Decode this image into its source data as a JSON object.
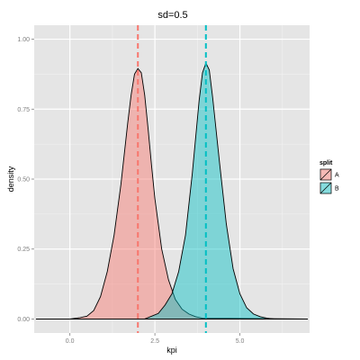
{
  "chart_data": {
    "type": "area",
    "title": "sd=0.5",
    "xlabel": "kpi",
    "ylabel": "density",
    "xlim": [
      -1.05,
      7.05
    ],
    "ylim": [
      -0.05,
      1.05
    ],
    "x_ticks": [
      0.0,
      2.5,
      5.0
    ],
    "x_tick_labels": [
      "0.0",
      "2.5",
      "5.0"
    ],
    "y_ticks": [
      0.0,
      0.25,
      0.5,
      0.75,
      1.0
    ],
    "y_tick_labels": [
      "0.00",
      "0.25",
      "0.50",
      "0.75",
      "1.00"
    ],
    "grid": true,
    "legend": {
      "title": "split",
      "position": "right"
    },
    "series": [
      {
        "name": "A",
        "color": "#f8766d",
        "mean": 2.0,
        "x": [
          -1.0,
          0.0,
          0.3,
          0.5,
          0.7,
          0.9,
          1.1,
          1.3,
          1.5,
          1.7,
          1.8,
          1.9,
          2.0,
          2.1,
          2.2,
          2.3,
          2.4,
          2.5,
          2.7,
          2.9,
          3.1,
          3.3,
          3.5,
          3.7,
          3.9,
          7.0
        ],
        "values": [
          0.0,
          0.0,
          0.005,
          0.01,
          0.03,
          0.08,
          0.17,
          0.3,
          0.48,
          0.7,
          0.8,
          0.875,
          0.895,
          0.88,
          0.8,
          0.68,
          0.55,
          0.43,
          0.25,
          0.14,
          0.07,
          0.035,
          0.018,
          0.008,
          0.003,
          0.0
        ]
      },
      {
        "name": "B",
        "color": "#00bfc4",
        "mean": 4.0,
        "x": [
          -1.0,
          2.2,
          2.6,
          2.8,
          3.0,
          3.2,
          3.4,
          3.6,
          3.8,
          3.9,
          4.0,
          4.1,
          4.2,
          4.4,
          4.6,
          4.8,
          5.0,
          5.2,
          5.4,
          5.6,
          5.8,
          6.0,
          7.0
        ],
        "values": [
          0.0,
          0.0,
          0.02,
          0.05,
          0.09,
          0.17,
          0.3,
          0.52,
          0.78,
          0.88,
          0.915,
          0.89,
          0.79,
          0.56,
          0.34,
          0.18,
          0.09,
          0.04,
          0.018,
          0.008,
          0.003,
          0.0,
          0.0
        ]
      }
    ]
  }
}
